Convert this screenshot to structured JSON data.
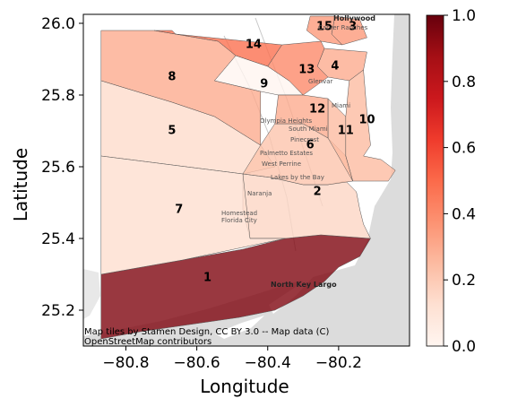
{
  "axes": {
    "xlabel": "Longitude",
    "ylabel": "Latitude",
    "xlim": [
      -80.92,
      -80.0
    ],
    "ylim": [
      25.1,
      26.025
    ],
    "xticks": [
      -80.8,
      -80.6,
      -80.4,
      -80.2
    ],
    "yticks": [
      25.2,
      25.4,
      25.6,
      25.8,
      26.0
    ],
    "xtick_labels": [
      "−80.8",
      "−80.6",
      "−80.4",
      "−80.2"
    ],
    "ytick_labels": [
      "25.2",
      "25.4",
      "25.6",
      "25.8",
      "26.0"
    ]
  },
  "colorbar": {
    "ticks": [
      0.0,
      0.2,
      0.4,
      0.6,
      0.8,
      1.0
    ],
    "tick_labels": [
      "0.0",
      "0.2",
      "0.4",
      "0.6",
      "0.8",
      "1.0"
    ],
    "colormap": "Reds",
    "color_low": "#fff5f0",
    "color_high": "#67000d",
    "range": [
      0,
      1
    ]
  },
  "basemap": {
    "attribution_line1": "Map tiles by Stamen Design, CC BY 3.0 -- Map data (C)",
    "attribution_line2": "OpenStreetMap contributors",
    "place_names": [
      "Hollywood",
      "Carver Ranches",
      "Miami",
      "Glenvar",
      "Olympia Heights",
      "South Miami",
      "Pinecrest",
      "Palmetto Estates",
      "West Perrine",
      "Lakes by the Bay",
      "Naranja",
      "Homestead",
      "Florida City",
      "North Key Largo"
    ],
    "water_color": "#dcdcdc",
    "land_color": "#ffffff"
  },
  "chart_data": {
    "type": "choropleth",
    "title": "",
    "xlabel": "Longitude",
    "ylabel": "Latitude",
    "value_range": [
      0,
      1
    ],
    "regions": [
      {
        "id": "1",
        "value": 0.95,
        "label_lonlat": [
          -80.57,
          25.29
        ],
        "polygon": [
          [
            -80.87,
            25.3
          ],
          [
            -80.64,
            25.34
          ],
          [
            -80.47,
            25.37
          ],
          [
            -80.35,
            25.4
          ],
          [
            -80.25,
            25.41
          ],
          [
            -80.11,
            25.4
          ],
          [
            -80.14,
            25.35
          ],
          [
            -80.2,
            25.32
          ],
          [
            -80.24,
            25.28
          ],
          [
            -80.3,
            25.24
          ],
          [
            -80.38,
            25.2
          ],
          [
            -80.48,
            25.18
          ],
          [
            -80.62,
            25.16
          ],
          [
            -80.76,
            25.14
          ],
          [
            -80.87,
            25.12
          ]
        ]
      },
      {
        "id": "2",
        "value": 0.16,
        "label_lonlat": [
          -80.26,
          25.53
        ],
        "polygon": [
          [
            -80.47,
            25.58
          ],
          [
            -80.39,
            25.57
          ],
          [
            -80.3,
            25.55
          ],
          [
            -80.23,
            25.55
          ],
          [
            -80.18,
            25.56
          ],
          [
            -80.15,
            25.53
          ],
          [
            -80.14,
            25.48
          ],
          [
            -80.13,
            25.44
          ],
          [
            -80.11,
            25.4
          ],
          [
            -80.25,
            25.41
          ],
          [
            -80.35,
            25.4
          ],
          [
            -80.45,
            25.4
          ],
          [
            -80.47,
            25.48
          ]
        ]
      },
      {
        "id": "3",
        "value": 0.35,
        "label_lonlat": [
          -80.16,
          25.99
        ],
        "polygon": [
          [
            -80.21,
            26.02
          ],
          [
            -80.14,
            26.01
          ],
          [
            -80.12,
            25.96
          ],
          [
            -80.19,
            25.94
          ],
          [
            -80.22,
            25.97
          ]
        ]
      },
      {
        "id": "4",
        "value": 0.3,
        "label_lonlat": [
          -80.21,
          25.88
        ],
        "polygon": [
          [
            -80.24,
            25.93
          ],
          [
            -80.12,
            25.92
          ],
          [
            -80.13,
            25.87
          ],
          [
            -80.17,
            25.84
          ],
          [
            -80.23,
            25.85
          ],
          [
            -80.26,
            25.88
          ]
        ]
      },
      {
        "id": "5",
        "value": 0.14,
        "label_lonlat": [
          -80.67,
          25.7
        ],
        "polygon": [
          [
            -80.87,
            25.84
          ],
          [
            -80.67,
            25.78
          ],
          [
            -80.55,
            25.74
          ],
          [
            -80.42,
            25.66
          ],
          [
            -80.38,
            25.6
          ],
          [
            -80.47,
            25.58
          ],
          [
            -80.87,
            25.63
          ]
        ]
      },
      {
        "id": "6",
        "value": 0.22,
        "label_lonlat": [
          -80.28,
          25.66
        ],
        "polygon": [
          [
            -80.42,
            25.66
          ],
          [
            -80.38,
            25.72
          ],
          [
            -80.3,
            25.72
          ],
          [
            -80.23,
            25.68
          ],
          [
            -80.18,
            25.63
          ],
          [
            -80.16,
            25.56
          ],
          [
            -80.23,
            25.55
          ],
          [
            -80.3,
            25.55
          ],
          [
            -80.39,
            25.57
          ],
          [
            -80.47,
            25.58
          ]
        ]
      },
      {
        "id": "7",
        "value": 0.13,
        "label_lonlat": [
          -80.65,
          25.48
        ],
        "polygon": [
          [
            -80.87,
            25.63
          ],
          [
            -80.47,
            25.58
          ],
          [
            -80.45,
            25.4
          ],
          [
            -80.35,
            25.4
          ],
          [
            -80.64,
            25.34
          ],
          [
            -80.87,
            25.3
          ]
        ]
      },
      {
        "id": "8",
        "value": 0.3,
        "label_lonlat": [
          -80.67,
          25.85
        ],
        "polygon": [
          [
            -80.87,
            25.98
          ],
          [
            -80.72,
            25.98
          ],
          [
            -80.54,
            25.95
          ],
          [
            -80.49,
            25.91
          ],
          [
            -80.55,
            25.84
          ],
          [
            -80.42,
            25.81
          ],
          [
            -80.42,
            25.66
          ],
          [
            -80.55,
            25.74
          ],
          [
            -80.67,
            25.78
          ],
          [
            -80.87,
            25.84
          ]
        ]
      },
      {
        "id": "9",
        "value": 0.0,
        "label_lonlat": [
          -80.41,
          25.83
        ],
        "polygon": [
          [
            -80.55,
            25.84
          ],
          [
            -80.49,
            25.91
          ],
          [
            -80.4,
            25.88
          ],
          [
            -80.34,
            25.84
          ],
          [
            -80.3,
            25.8
          ],
          [
            -80.37,
            25.8
          ],
          [
            -80.42,
            25.81
          ]
        ]
      },
      {
        "id": "10",
        "value": 0.25,
        "label_lonlat": [
          -80.12,
          25.73
        ],
        "polygon": [
          [
            -80.17,
            25.84
          ],
          [
            -80.13,
            25.87
          ],
          [
            -80.12,
            25.75
          ],
          [
            -80.11,
            25.66
          ],
          [
            -80.13,
            25.63
          ],
          [
            -80.08,
            25.62
          ],
          [
            -80.04,
            25.59
          ],
          [
            -80.06,
            25.56
          ],
          [
            -80.1,
            25.56
          ],
          [
            -80.16,
            25.56
          ],
          [
            -80.18,
            25.63
          ],
          [
            -80.18,
            25.74
          ]
        ]
      },
      {
        "id": "11",
        "value": 0.25,
        "label_lonlat": [
          -80.18,
          25.7
        ],
        "polygon": [
          [
            -80.23,
            25.79
          ],
          [
            -80.18,
            25.74
          ],
          [
            -80.18,
            25.63
          ],
          [
            -80.16,
            25.56
          ],
          [
            -80.23,
            25.68
          ]
        ]
      },
      {
        "id": "12",
        "value": 0.3,
        "label_lonlat": [
          -80.26,
          25.76
        ],
        "polygon": [
          [
            -80.3,
            25.8
          ],
          [
            -80.23,
            25.79
          ],
          [
            -80.23,
            25.68
          ],
          [
            -80.3,
            25.72
          ],
          [
            -80.38,
            25.72
          ],
          [
            -80.37,
            25.8
          ]
        ]
      },
      {
        "id": "13",
        "value": 0.4,
        "label_lonlat": [
          -80.29,
          25.87
        ],
        "polygon": [
          [
            -80.34,
            25.84
          ],
          [
            -80.4,
            25.88
          ],
          [
            -80.36,
            25.94
          ],
          [
            -80.25,
            25.95
          ],
          [
            -80.24,
            25.93
          ],
          [
            -80.26,
            25.88
          ],
          [
            -80.23,
            25.85
          ],
          [
            -80.3,
            25.8
          ]
        ]
      },
      {
        "id": "14",
        "value": 0.48,
        "label_lonlat": [
          -80.44,
          25.94
        ],
        "polygon": [
          [
            -80.72,
            25.98
          ],
          [
            -80.67,
            25.98
          ],
          [
            -80.66,
            25.97
          ],
          [
            -80.36,
            25.94
          ],
          [
            -80.4,
            25.88
          ],
          [
            -80.49,
            25.91
          ],
          [
            -80.54,
            25.95
          ]
        ]
      },
      {
        "id": "15",
        "value": 0.35,
        "label_lonlat": [
          -80.24,
          25.99
        ],
        "polygon": [
          [
            -80.28,
            26.02
          ],
          [
            -80.21,
            26.02
          ],
          [
            -80.22,
            25.97
          ],
          [
            -80.19,
            25.94
          ],
          [
            -80.25,
            25.95
          ],
          [
            -80.29,
            25.98
          ]
        ]
      }
    ]
  }
}
